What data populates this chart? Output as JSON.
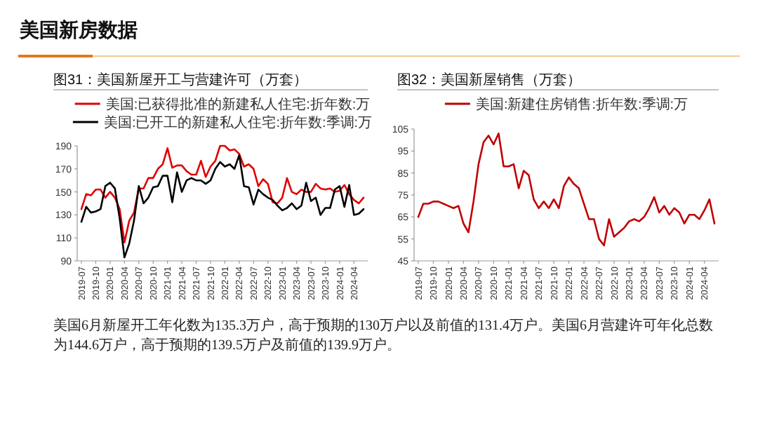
{
  "chart_data": [
    {
      "type": "line",
      "title": "图31：美国新屋开工与营建许可（万套）",
      "legend": "top",
      "categories": [
        "2019-07",
        null,
        null,
        "2019-10",
        null,
        null,
        "2020-01",
        null,
        null,
        "2020-04",
        null,
        null,
        "2020-07",
        null,
        null,
        "2020-10",
        null,
        null,
        "2021-01",
        null,
        null,
        "2021-04",
        null,
        null,
        "2021-07",
        null,
        null,
        "2021-10",
        null,
        null,
        "2022-01",
        null,
        null,
        "2022-04",
        null,
        null,
        "2022-07",
        null,
        null,
        "2022-10",
        null,
        null,
        "2023-01",
        null,
        null,
        "2023-04",
        null,
        null,
        "2023-07",
        null,
        null,
        "2023-10",
        null,
        null,
        "2024-01",
        null,
        null,
        "2024-04",
        null,
        null
      ],
      "ylim": [
        90,
        190
      ],
      "yticks": [
        90,
        110,
        130,
        150,
        170,
        190
      ],
      "series": [
        {
          "name": "美国:已获得批准的新建私人住宅:折年数:万",
          "color": "#e00000",
          "values": [
            135,
            148,
            147,
            152,
            152,
            145,
            150,
            145,
            135,
            106,
            125,
            132,
            153,
            153,
            162,
            162,
            170,
            174,
            188,
            171,
            173,
            173,
            168,
            165,
            165,
            177,
            163,
            172,
            177,
            190,
            190,
            186,
            187,
            183,
            172,
            174,
            170,
            155,
            161,
            157,
            141,
            140,
            145,
            162,
            150,
            148,
            152,
            150,
            150,
            157,
            153,
            152,
            153,
            150,
            151,
            156,
            148,
            143,
            140,
            145
          ]
        },
        {
          "name": "美国:已开工的新建私人住宅:折年数:季调:万",
          "color": "#000000",
          "values": [
            124,
            137,
            132,
            133,
            135,
            155,
            158,
            153,
            127,
            93,
            105,
            125,
            155,
            140,
            145,
            154,
            155,
            164,
            164,
            141,
            167,
            150,
            160,
            162,
            160,
            160,
            157,
            160,
            170,
            176,
            172,
            174,
            170,
            182,
            155,
            154,
            139,
            152,
            148,
            145,
            143,
            138,
            134,
            136,
            140,
            135,
            138,
            158,
            142,
            145,
            130,
            136,
            136,
            152,
            155,
            137,
            156,
            130,
            131,
            135
          ]
        }
      ]
    },
    {
      "type": "line",
      "title": "图32：美国新屋销售（万套）",
      "legend": "top",
      "categories": [
        "2019-07",
        null,
        null,
        "2019-10",
        null,
        null,
        "2020-01",
        null,
        null,
        "2020-04",
        null,
        null,
        "2020-07",
        null,
        null,
        "2020-10",
        null,
        null,
        "2021-01",
        null,
        null,
        "2021-04",
        null,
        null,
        "2021-07",
        null,
        null,
        "2021-10",
        null,
        null,
        "2022-01",
        null,
        null,
        "2022-04",
        null,
        null,
        "2022-07",
        null,
        null,
        "2022-10",
        null,
        null,
        "2023-01",
        null,
        null,
        "2023-04",
        null,
        null,
        "2023-07",
        null,
        null,
        "2023-10",
        null,
        null,
        "2024-01",
        null,
        null,
        "2024-04",
        null,
        null
      ],
      "ylim": [
        45,
        105
      ],
      "yticks": [
        45,
        55,
        65,
        75,
        85,
        95,
        105
      ],
      "series": [
        {
          "name": "美国:新建住房销售:折年数:季调:万",
          "color": "#c00000",
          "values": [
            65,
            71,
            71,
            72,
            72,
            71,
            70,
            69,
            70,
            62,
            58,
            72,
            89,
            99,
            102,
            98,
            103,
            88,
            88,
            89,
            78,
            86,
            84,
            73,
            69,
            72,
            69,
            73,
            69,
            79,
            83,
            80,
            78,
            71,
            64,
            64,
            55,
            52,
            64,
            56,
            58,
            60,
            63,
            64,
            63,
            65,
            69,
            74,
            67,
            70,
            66,
            69,
            67,
            62,
            66,
            66,
            64,
            68,
            73,
            62
          ]
        }
      ]
    },
    {
      "type": "other",
      "title": "美国新房数据",
      "annotations": [
        "美国6月新屋开工年化数为135.3万户，高于预期的130万户以及前值的131.4万户。美国6月营建许可年化总数为144.6万户，高于预期的139.5万户及前值的139.9万户。"
      ]
    }
  ]
}
